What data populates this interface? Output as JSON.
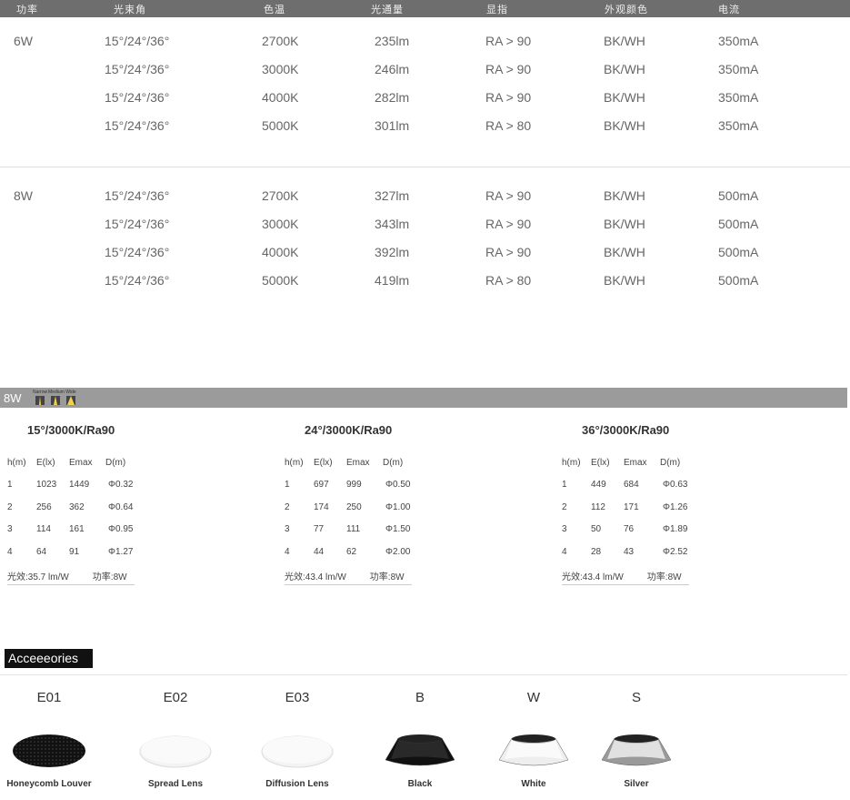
{
  "header": [
    "功率",
    "光束角",
    "色温",
    "光通量",
    "显指",
    "外观颜色",
    "电流"
  ],
  "spec_groups": [
    {
      "power": "6W",
      "rows": [
        [
          "15°/24°/36°",
          "2700K",
          "235lm",
          "RA > 90",
          "BK/WH",
          "350mA"
        ],
        [
          "15°/24°/36°",
          "3000K",
          "246lm",
          "RA > 90",
          "BK/WH",
          "350mA"
        ],
        [
          "15°/24°/36°",
          "4000K",
          "282lm",
          "RA > 90",
          "BK/WH",
          "350mA"
        ],
        [
          "15°/24°/36°",
          "5000K",
          "301lm",
          "RA > 80",
          "BK/WH",
          "350mA"
        ]
      ]
    },
    {
      "power": "8W",
      "rows": [
        [
          "15°/24°/36°",
          "2700K",
          "327lm",
          "RA > 90",
          "BK/WH",
          "500mA"
        ],
        [
          "15°/24°/36°",
          "3000K",
          "343lm",
          "RA > 90",
          "BK/WH",
          "500mA"
        ],
        [
          "15°/24°/36°",
          "4000K",
          "392lm",
          "RA > 90",
          "BK/WH",
          "500mA"
        ],
        [
          "15°/24°/36°",
          "5000K",
          "419lm",
          "RA > 80",
          "BK/WH",
          "500mA"
        ]
      ]
    }
  ],
  "band": {
    "label": "8W",
    "beams": [
      "Narrow",
      "Medium",
      "Wide"
    ]
  },
  "photometric": {
    "columns": [
      "h(m)",
      "E(lx)",
      "Emax",
      "D(m)"
    ],
    "blocks": [
      {
        "title": "15°/3000K/Ra90",
        "rows": [
          [
            "1",
            "1023",
            "1449",
            "Φ0.32"
          ],
          [
            "2",
            "256",
            "362",
            "Φ0.64"
          ],
          [
            "3",
            "114",
            "161",
            "Φ0.95"
          ],
          [
            "4",
            "64",
            "91",
            "Φ1.27"
          ]
        ],
        "efficacy": "光效:35.7 lm/W",
        "power": "功率:8W"
      },
      {
        "title": "24°/3000K/Ra90",
        "rows": [
          [
            "1",
            "697",
            "999",
            "Φ0.50"
          ],
          [
            "2",
            "174",
            "250",
            "Φ1.00"
          ],
          [
            "3",
            "77",
            "111",
            "Φ1.50"
          ],
          [
            "4",
            "44",
            "62",
            "Φ2.00"
          ]
        ],
        "efficacy": "光效:43.4 lm/W",
        "power": "功率:8W"
      },
      {
        "title": "36°/3000K/Ra90",
        "rows": [
          [
            "1",
            "449",
            "684",
            "Φ0.63"
          ],
          [
            "2",
            "112",
            "171",
            "Φ1.26"
          ],
          [
            "3",
            "50",
            "76",
            "Φ1.89"
          ],
          [
            "4",
            "28",
            "43",
            "Φ2.52"
          ]
        ],
        "efficacy": "光效:43.4 lm/W",
        "power": "功率:8W"
      }
    ]
  },
  "accessories": {
    "title": "Acceeeories",
    "items": [
      {
        "code": "E01",
        "label": "Honeycomb Louver",
        "kind": "honeycomb"
      },
      {
        "code": "E02",
        "label": "Spread Lens",
        "kind": "lens"
      },
      {
        "code": "E03",
        "label": "Diffusion Lens",
        "kind": "lens"
      },
      {
        "code": "B",
        "label": "Black",
        "kind": "reflector",
        "color": "#111111"
      },
      {
        "code": "W",
        "label": "White",
        "kind": "reflector",
        "color": "#eeeeee"
      },
      {
        "code": "S",
        "label": "Silver",
        "kind": "reflector",
        "color": "#9a9a9a"
      }
    ]
  }
}
